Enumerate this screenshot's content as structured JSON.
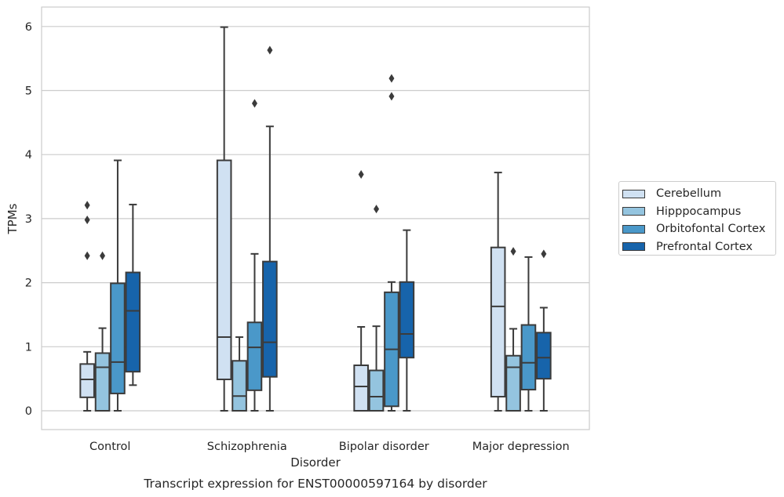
{
  "chart_data": {
    "type": "box",
    "title": "",
    "caption": "Transcript expression for ENST00000597164 by disorder",
    "xlabel": "Disorder",
    "ylabel": "TPMs",
    "ylim": [
      -0.3,
      6.3
    ],
    "yticks": [
      0,
      1,
      2,
      3,
      4,
      5,
      6
    ],
    "grid": "horizontal",
    "legend_position": "right",
    "categories": [
      "Control",
      "Schizophrenia",
      "Bipolar disorder",
      "Major depression"
    ],
    "series": [
      {
        "name": "Cerebellum",
        "color": "#d0e1f2",
        "boxes": [
          {
            "whisker_low": 0,
            "q1": 0.21,
            "median": 0.49,
            "q3": 0.73,
            "whisker_high": 0.92,
            "outliers": [
              2.42,
              2.98,
              3.21
            ]
          },
          {
            "whisker_low": 0,
            "q1": 0.49,
            "median": 1.15,
            "q3": 3.91,
            "whisker_high": 5.99,
            "outliers": []
          },
          {
            "whisker_low": 0,
            "q1": 0,
            "median": 0.38,
            "q3": 0.71,
            "whisker_high": 1.31,
            "outliers": [
              3.69
            ]
          },
          {
            "whisker_low": 0,
            "q1": 0.22,
            "median": 1.63,
            "q3": 2.55,
            "whisker_high": 3.72,
            "outliers": []
          }
        ]
      },
      {
        "name": "Hipppocampus",
        "color": "#94c4df",
        "boxes": [
          {
            "whisker_low": 0,
            "q1": 0,
            "median": 0.68,
            "q3": 0.9,
            "whisker_high": 1.29,
            "outliers": [
              2.42
            ]
          },
          {
            "whisker_low": 0,
            "q1": 0,
            "median": 0.23,
            "q3": 0.78,
            "whisker_high": 1.15,
            "outliers": []
          },
          {
            "whisker_low": 0,
            "q1": 0,
            "median": 0.22,
            "q3": 0.63,
            "whisker_high": 1.32,
            "outliers": [
              3.15
            ]
          },
          {
            "whisker_low": 0,
            "q1": 0,
            "median": 0.68,
            "q3": 0.86,
            "whisker_high": 1.28,
            "outliers": [
              2.49
            ]
          }
        ]
      },
      {
        "name": "Orbitofontal Cortex",
        "color": "#4a98c9",
        "boxes": [
          {
            "whisker_low": 0,
            "q1": 0.27,
            "median": 0.76,
            "q3": 1.99,
            "whisker_high": 3.91,
            "outliers": []
          },
          {
            "whisker_low": 0,
            "q1": 0.32,
            "median": 0.99,
            "q3": 1.38,
            "whisker_high": 2.45,
            "outliers": [
              4.8
            ]
          },
          {
            "whisker_low": 0,
            "q1": 0.07,
            "median": 0.96,
            "q3": 1.85,
            "whisker_high": 2.01,
            "outliers": [
              4.91,
              5.19
            ]
          },
          {
            "whisker_low": 0,
            "q1": 0.33,
            "median": 0.75,
            "q3": 1.34,
            "whisker_high": 2.4,
            "outliers": []
          }
        ]
      },
      {
        "name": "Prefrontal Cortex",
        "color": "#1764ab",
        "boxes": [
          {
            "whisker_low": 0.4,
            "q1": 0.61,
            "median": 1.56,
            "q3": 2.16,
            "whisker_high": 3.22,
            "outliers": []
          },
          {
            "whisker_low": 0,
            "q1": 0.53,
            "median": 1.07,
            "q3": 2.33,
            "whisker_high": 4.44,
            "outliers": [
              5.63
            ]
          },
          {
            "whisker_low": 0,
            "q1": 0.83,
            "median": 1.2,
            "q3": 2.01,
            "whisker_high": 2.82,
            "outliers": []
          },
          {
            "whisker_low": 0,
            "q1": 0.5,
            "median": 0.83,
            "q3": 1.22,
            "whisker_high": 1.61,
            "outliers": [
              2.45
            ]
          }
        ]
      }
    ]
  }
}
